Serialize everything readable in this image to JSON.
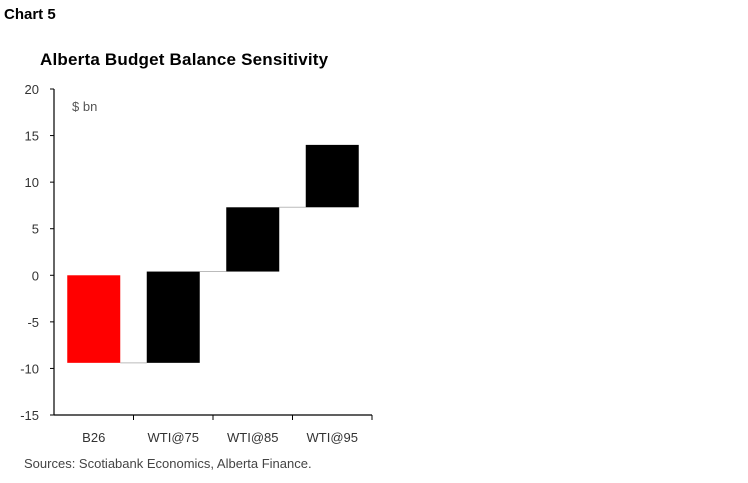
{
  "header": {
    "chart_label": "Chart 5",
    "title": "Alberta Budget Balance Sensitivity",
    "unit": "$ bn"
  },
  "footer": {
    "source": "Sources: Scotiabank Economics, Alberta Finance."
  },
  "chart_data": {
    "type": "bar",
    "subtype": "waterfall",
    "title": "Alberta Budget Balance Sensitivity",
    "xlabel": "",
    "ylabel": "$ bn",
    "ylim": [
      -15,
      20
    ],
    "yticks": [
      20,
      15,
      10,
      5,
      0,
      -5,
      -10,
      -15
    ],
    "categories": [
      "B26",
      "WTI@75",
      "WTI@85",
      "WTI@95"
    ],
    "bars": [
      {
        "category": "B26",
        "start": 0,
        "end": -9.4,
        "color": "#ff0000"
      },
      {
        "category": "WTI@75",
        "start": -9.4,
        "end": 0.4,
        "color": "#000000"
      },
      {
        "category": "WTI@85",
        "start": 0.4,
        "end": 7.3,
        "color": "#000000"
      },
      {
        "category": "WTI@95",
        "start": 7.3,
        "end": 14.0,
        "color": "#000000"
      }
    ],
    "grid": false,
    "legend": "none"
  }
}
